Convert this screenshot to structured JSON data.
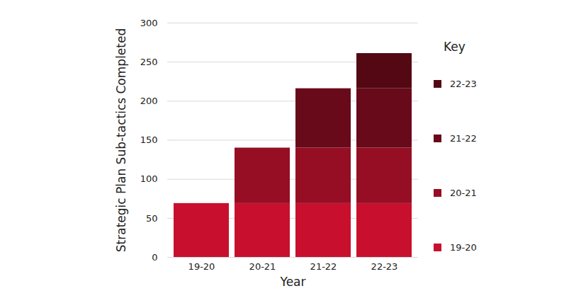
{
  "chart_data": {
    "type": "bar",
    "stacked": true,
    "x_label": "Year",
    "y_label": "Strategic Plan Sub-tactics Completed",
    "legend_title": "Key",
    "legend": "right",
    "grid": true,
    "categories": [
      "19-20",
      "20-21",
      "21-22",
      "22-23"
    ],
    "series": [
      {
        "name": "19-20",
        "color": "#c8102e",
        "values": [
          69,
          69,
          69,
          69
        ]
      },
      {
        "name": "20-21",
        "color": "#960e24",
        "values": [
          null,
          71,
          71,
          71
        ]
      },
      {
        "name": "21-22",
        "color": "#690a1a",
        "values": [
          null,
          null,
          76,
          76
        ]
      },
      {
        "name": "22-23",
        "color": "#530814",
        "values": [
          null,
          null,
          null,
          45
        ]
      }
    ],
    "ylim": [
      0,
      300
    ],
    "yticks": [
      0,
      50,
      100,
      150,
      200,
      250,
      300
    ]
  }
}
